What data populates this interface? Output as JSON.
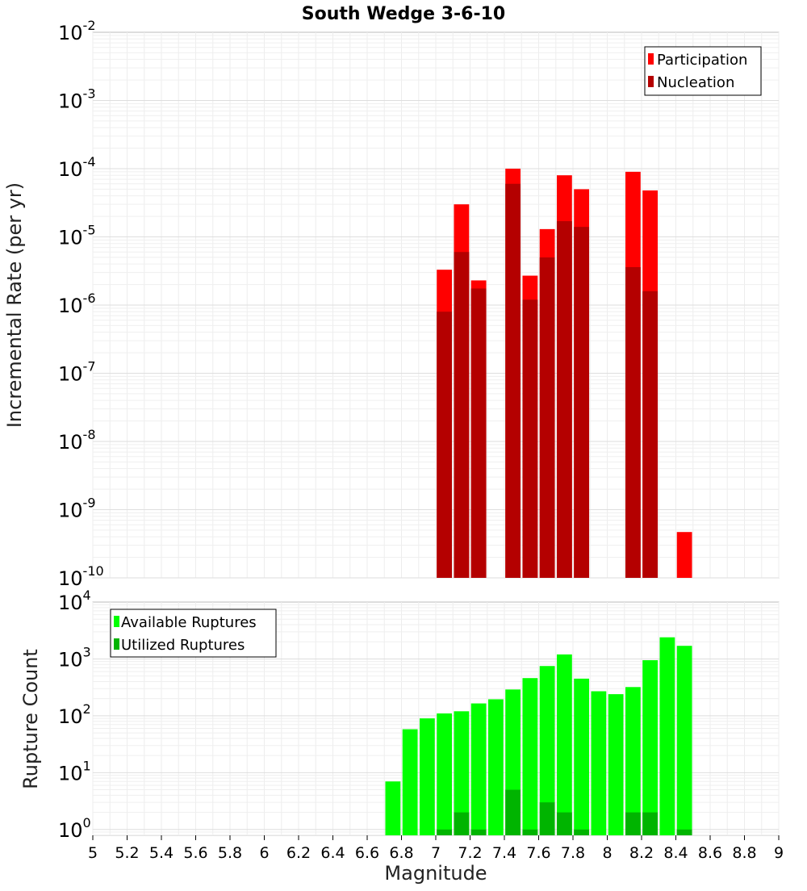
{
  "chart_data": [
    {
      "type": "bar",
      "title": "South Wedge 3-6-10",
      "xlabel": "",
      "ylabel": "Incremental Rate (per yr)",
      "y_scale": "log",
      "ylim": [
        1e-10,
        0.01
      ],
      "xlim": [
        5,
        9
      ],
      "grid": true,
      "legend_position": "top-right",
      "y_tick_exponents": [
        "-10",
        "-9",
        "-8",
        "-7",
        "-6",
        "-5",
        "-4",
        "-3",
        "-2"
      ],
      "colors": {
        "Participation": "#ff0000",
        "Nucleation": "#b40000"
      },
      "series": [
        {
          "name": "Participation",
          "x": [
            7.05,
            7.15,
            7.25,
            7.45,
            7.55,
            7.65,
            7.75,
            7.85,
            8.15,
            8.25,
            8.45
          ],
          "values": [
            3.3e-06,
            3e-05,
            2.3e-06,
            0.0001,
            2.7e-06,
            1.3e-05,
            8e-05,
            5e-05,
            9e-05,
            4.8e-05,
            4.7e-10
          ]
        },
        {
          "name": "Nucleation",
          "x": [
            7.05,
            7.15,
            7.25,
            7.45,
            7.55,
            7.65,
            7.75,
            7.85,
            8.15,
            8.25
          ],
          "values": [
            8e-07,
            6e-06,
            1.75e-06,
            6e-05,
            1.2e-06,
            5e-06,
            1.7e-05,
            1.4e-05,
            3.6e-06,
            1.6e-06
          ]
        }
      ]
    },
    {
      "type": "bar",
      "title": "",
      "xlabel": "Magnitude",
      "ylabel": "Rupture Count",
      "y_scale": "log",
      "ylim": [
        0.79,
        10000
      ],
      "xlim": [
        5,
        9
      ],
      "grid": true,
      "legend_position": "top-left",
      "y_tick_exponents": [
        "0",
        "1",
        "2",
        "3",
        "4"
      ],
      "x_tick_labels": [
        "5",
        "5.2",
        "5.4",
        "5.6",
        "5.8",
        "6",
        "6.2",
        "6.4",
        "6.6",
        "6.8",
        "7",
        "7.2",
        "7.4",
        "7.6",
        "7.8",
        "8",
        "8.2",
        "8.4",
        "8.6",
        "8.8",
        "9"
      ],
      "colors": {
        "Available Ruptures": "#00ff00",
        "Utilized Ruptures": "#00b400"
      },
      "series": [
        {
          "name": "Available Ruptures",
          "x": [
            6.75,
            6.85,
            6.95,
            7.05,
            7.15,
            7.25,
            7.35,
            7.45,
            7.55,
            7.65,
            7.75,
            7.85,
            7.95,
            8.05,
            8.15,
            8.25,
            8.35,
            8.45
          ],
          "values": [
            7,
            58,
            90,
            110,
            120,
            165,
            195,
            290,
            460,
            750,
            1200,
            450,
            270,
            240,
            320,
            950,
            2400,
            1700
          ]
        },
        {
          "name": "Utilized Ruptures",
          "x": [
            7.05,
            7.15,
            7.25,
            7.45,
            7.55,
            7.65,
            7.75,
            7.85,
            8.15,
            8.25,
            8.45
          ],
          "values": [
            1,
            2,
            1,
            5,
            1,
            3,
            2,
            1,
            2,
            2,
            1
          ]
        }
      ]
    }
  ]
}
